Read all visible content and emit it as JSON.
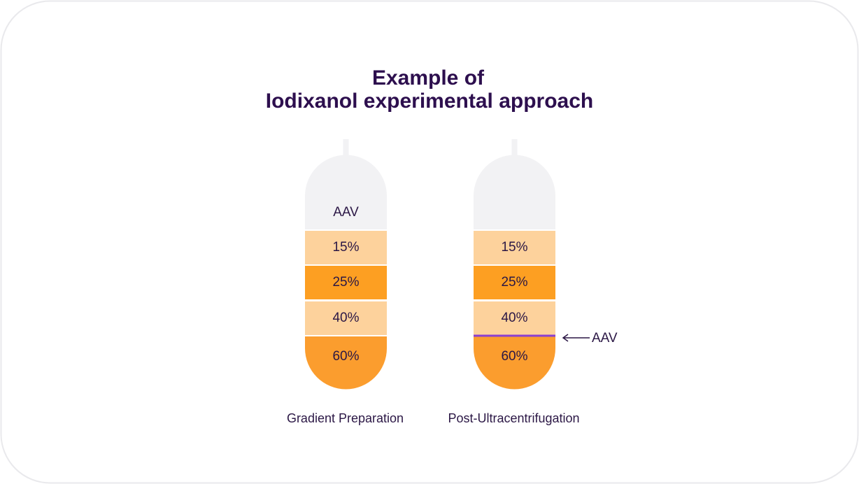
{
  "title": [
    "Example of",
    "Iodixanol experimental approach"
  ],
  "tubes": [
    {
      "caption": "Gradient Preparation",
      "top_label": "AAV",
      "layers": [
        "15%",
        "25%",
        "40%",
        "60%"
      ]
    },
    {
      "caption": "Post-Ultracentrifugation",
      "layers": [
        "15%",
        "25%",
        "40%",
        "60%"
      ],
      "marker_label": "AAV"
    }
  ]
}
